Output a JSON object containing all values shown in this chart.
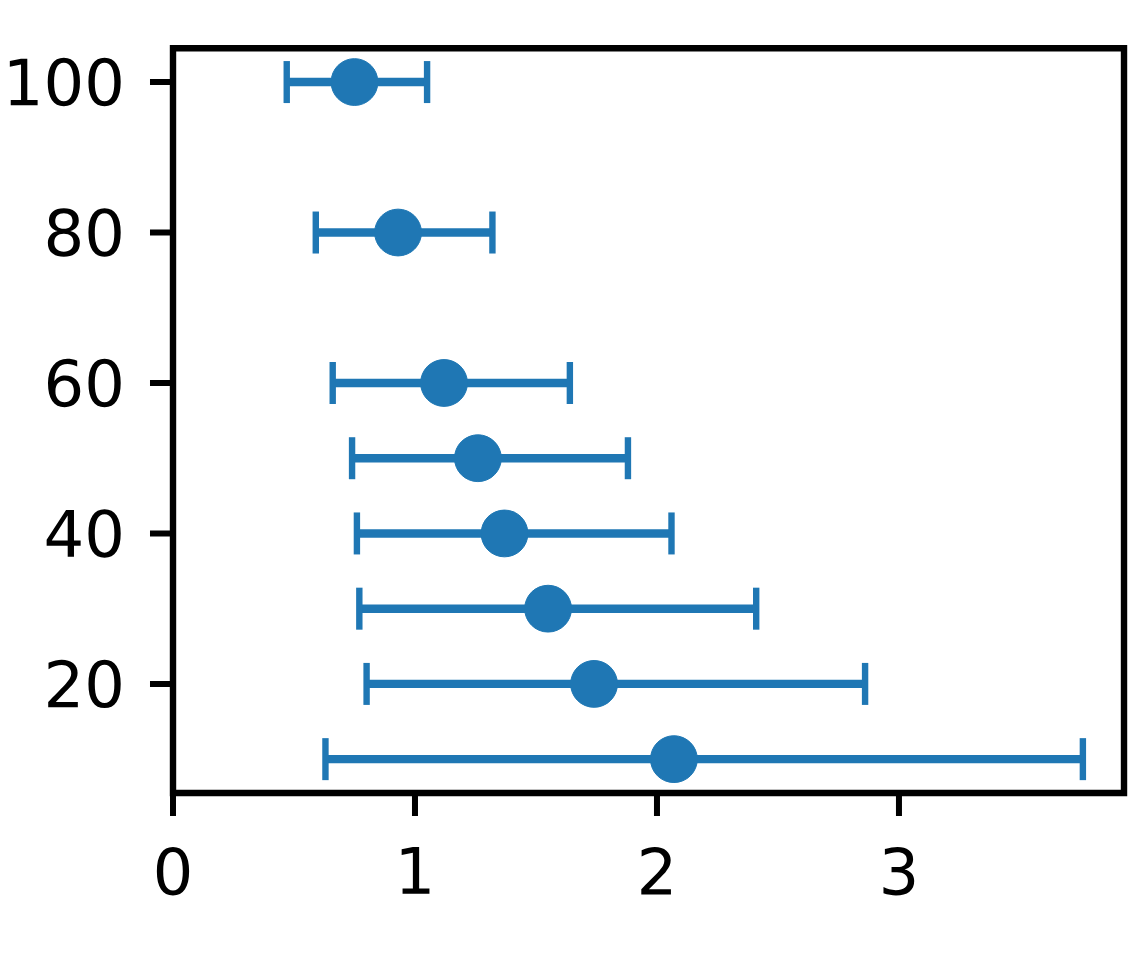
{
  "chart_data": {
    "type": "scatter",
    "x": [
      2.07,
      1.74,
      1.55,
      1.37,
      1.26,
      1.12,
      0.93,
      0.75
    ],
    "values": [
      10,
      20,
      30,
      40,
      50,
      60,
      80,
      100
    ],
    "xerrors": [
      [
        0.63,
        3.76
      ],
      [
        0.8,
        2.86
      ],
      [
        0.77,
        2.41
      ],
      [
        0.76,
        2.06
      ],
      [
        0.74,
        1.88
      ],
      [
        0.66,
        1.64
      ],
      [
        0.59,
        1.32
      ],
      [
        0.47,
        1.05
      ]
    ],
    "color": "#1f77b4",
    "marker": "circle",
    "xlim": [
      0,
      3.93
    ],
    "ylim": [
      5.5,
      104.5
    ],
    "xticks": [
      0,
      1,
      2,
      3
    ],
    "yticks": [
      20,
      40,
      60,
      80,
      100
    ]
  }
}
